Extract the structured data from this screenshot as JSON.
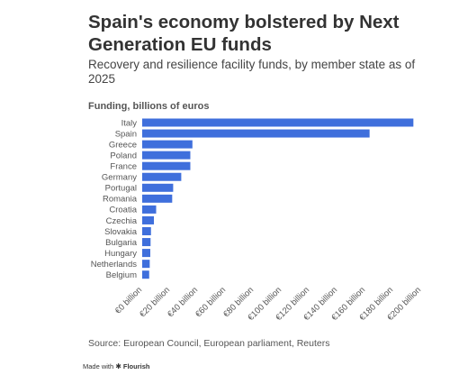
{
  "header": {
    "title": "Spain's economy bolstered by Next Generation EU funds",
    "subtitle": "Recovery and resilience facility funds, by member state as of 2025"
  },
  "chart_data": {
    "type": "bar",
    "orientation": "horizontal",
    "title": "Spain's economy bolstered by Next Generation EU funds",
    "subtitle": "Recovery and resilience facility funds, by member state as of 2025",
    "xlabel": "Funding, billions of euros",
    "categories": [
      "Italy",
      "Spain",
      "Greece",
      "Poland",
      "France",
      "Germany",
      "Portugal",
      "Romania",
      "Croatia",
      "Czechia",
      "Slovakia",
      "Bulgaria",
      "Hungary",
      "Netherlands",
      "Belgium"
    ],
    "values": [
      194.4,
      163.0,
      36.0,
      34.5,
      34.5,
      28.0,
      22.2,
      21.5,
      10.0,
      8.4,
      6.3,
      6.0,
      5.8,
      5.4,
      5.0
    ],
    "ticks": [
      "€0 billion",
      "€20 billion",
      "€40 billion",
      "€60 billion",
      "€80 billion",
      "€100 billion",
      "€120 billion",
      "€140 billion",
      "€160 billion",
      "€180 billion",
      "€200 billion"
    ],
    "xlim": [
      0,
      200
    ],
    "bar_color": "#3F6FDC",
    "grid": false
  },
  "footer": {
    "source": "Source: European Council, European parliament, Reuters",
    "made_with": "Made with",
    "brand": "Flourish"
  }
}
